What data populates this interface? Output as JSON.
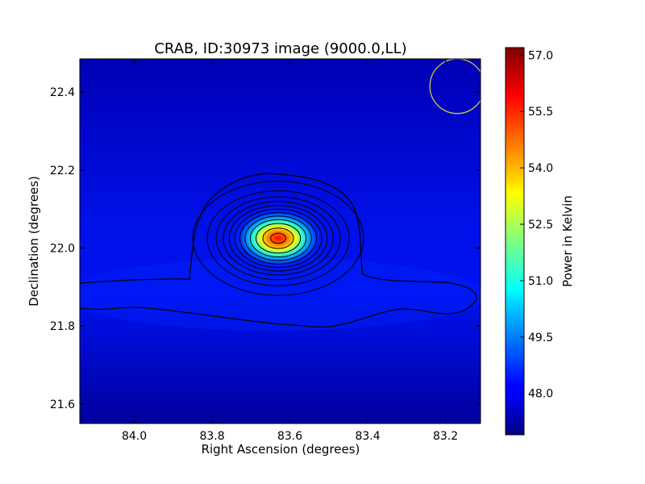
{
  "chart_data": {
    "type": "heatmap",
    "title": "CRAB, ID:30973 image (9000.0,LL)",
    "xlabel": "Right Ascension (degrees)",
    "ylabel": "Declination (degrees)",
    "xlim": [
      84.14,
      83.11
    ],
    "ylim": [
      21.55,
      22.485
    ],
    "x_ticks": [
      84.0,
      83.8,
      83.6,
      83.4,
      83.2
    ],
    "x_tick_labels": [
      "84.0",
      "83.8",
      "83.6",
      "83.4",
      "83.2"
    ],
    "y_ticks": [
      21.6,
      21.8,
      22.0,
      22.2,
      22.4
    ],
    "y_tick_labels": [
      "21.6",
      "21.8",
      "22.0",
      "22.2",
      "22.4"
    ],
    "colorbar": {
      "label": "Power in Kelvin",
      "range": [
        46.9,
        57.2
      ],
      "ticks": [
        48.0,
        49.5,
        51.0,
        52.5,
        54.0,
        55.5,
        57.0
      ],
      "tick_labels": [
        "48.0",
        "49.5",
        "51.0",
        "52.5",
        "54.0",
        "55.5",
        "57.0"
      ],
      "colormap": "jet"
    },
    "source": {
      "ra": 83.63,
      "dec": 22.025,
      "peak": 57.0,
      "fwhm_ra": 0.18,
      "fwhm_dec": 0.12
    },
    "background_level": 47.6,
    "contour_levels": [
      48.2,
      49.0,
      49.8,
      50.6,
      51.4,
      52.2,
      53.0,
      53.8,
      54.6,
      55.4,
      56.2,
      56.8
    ],
    "beam": {
      "ra": 83.17,
      "dec": 22.415,
      "radius_deg": 0.07,
      "color": "#c8c83c"
    },
    "colors": {
      "contour": "#000000",
      "frame": "#000000",
      "text": "#000000"
    }
  }
}
